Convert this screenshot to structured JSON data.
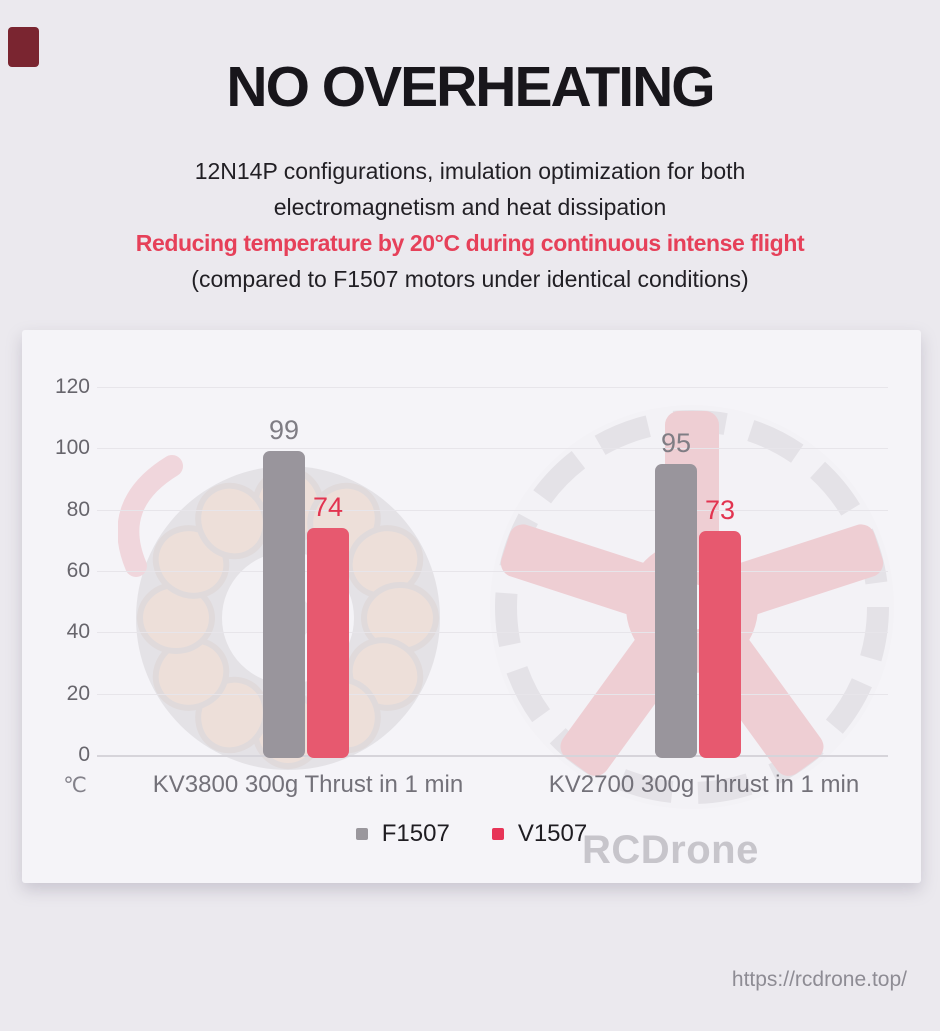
{
  "header": {
    "title": "NO OVERHEATING",
    "line1": "12N14P configurations, imulation optimization for both",
    "line2": "electromagnetism and heat dissipation",
    "highlight": "Reducing temperature by 20°C during continuous intense flight",
    "note": "(compared to F1507 motors under identical conditions)"
  },
  "watermark": "RCDrone",
  "footer": {
    "url": "https://rcdrone.top/"
  },
  "chart_data": {
    "type": "bar",
    "title": "",
    "categories": [
      "KV3800 300g Thrust in 1 min",
      "KV2700 300g Thrust in 1 min"
    ],
    "series": [
      {
        "name": "F1507",
        "values": [
          99,
          95
        ],
        "color": "#99959c",
        "swatch_color": "#9a979d",
        "label_color": "#7f7d84"
      },
      {
        "name": "V1507",
        "values": [
          74,
          73
        ],
        "color": "#e7596f",
        "swatch_color": "#e73457",
        "label_color": "#e23450"
      }
    ],
    "ylabel": "℃",
    "ylim": [
      0,
      120
    ],
    "yticks": [
      0,
      20,
      40,
      60,
      80,
      100,
      120
    ],
    "grid": true,
    "legend_position": "bottom-center"
  },
  "colors": {
    "page_bg": "#ebe9ee",
    "panel_bg": "#f5f4f8",
    "accent_red": "#e64059",
    "grid_line": "#e7e5ea",
    "axis_line": "#d6d4da",
    "corner_mark": "#7a2530"
  }
}
